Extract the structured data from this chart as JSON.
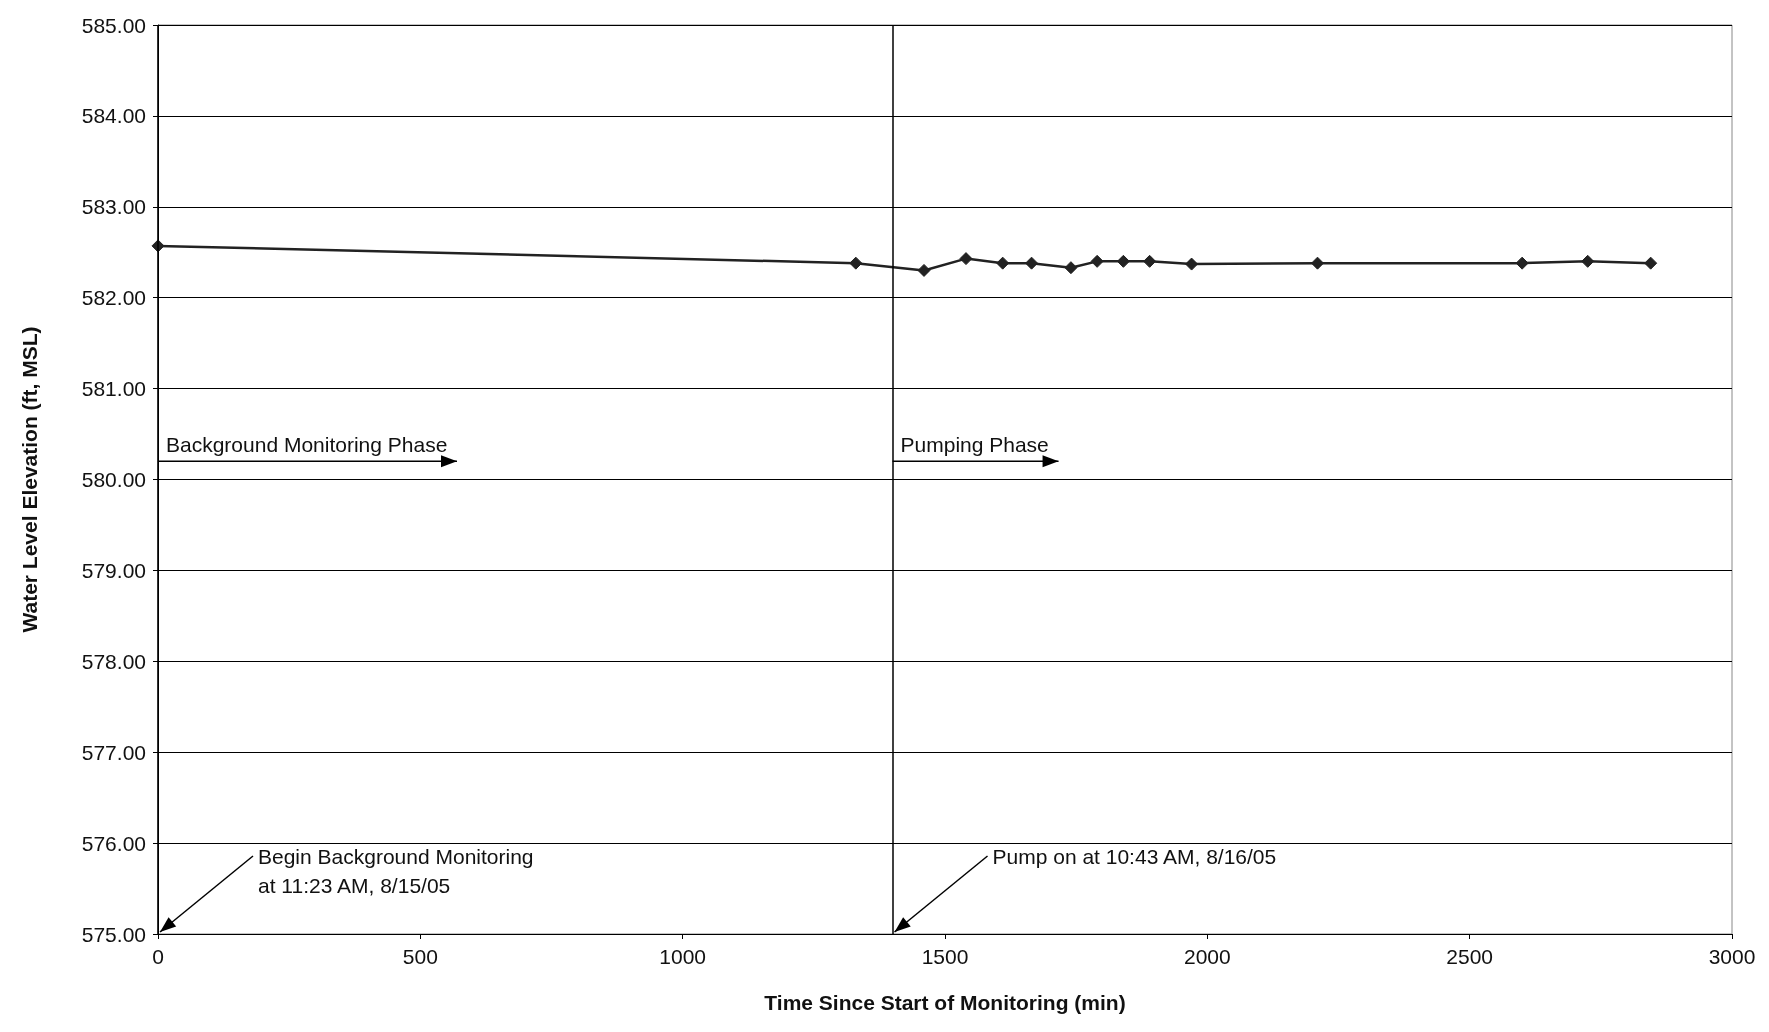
{
  "chart_data": {
    "type": "line",
    "xlabel": "Time Since Start of Monitoring (min)",
    "ylabel": "Water Level Elevation (ft, MSL)",
    "x": [
      0,
      1330,
      1460,
      1540,
      1610,
      1665,
      1740,
      1790,
      1840,
      1890,
      1970,
      2210,
      2600,
      2725,
      2845
    ],
    "series": [
      {
        "color": "#222222",
        "values": [
          582.57,
          582.38,
          582.3,
          582.43,
          582.38,
          582.38,
          582.33,
          582.4,
          582.4,
          582.4,
          582.37,
          582.38,
          582.38,
          582.4,
          582.38
        ]
      }
    ],
    "xlim": [
      0,
      3000
    ],
    "xticks": [
      0,
      500,
      1000,
      1500,
      2000,
      2500,
      3000
    ],
    "ylim": [
      575,
      585
    ],
    "yticks": [
      {
        "value": 575,
        "label": "575.00"
      },
      {
        "value": 576,
        "label": "576.00"
      },
      {
        "value": 577,
        "label": "577.00"
      },
      {
        "value": 578,
        "label": "578.00"
      },
      {
        "value": 579,
        "label": "579.00"
      },
      {
        "value": 580,
        "label": "580.00"
      },
      {
        "value": 581,
        "label": "581.00"
      },
      {
        "value": 582,
        "label": "582.00"
      },
      {
        "value": 583,
        "label": "583.00"
      },
      {
        "value": 584,
        "label": "584.00"
      },
      {
        "value": 585,
        "label": "585.00"
      }
    ],
    "grid": "y",
    "marker": "diamond",
    "line_style": "solid",
    "ref_lines": [
      {
        "axis": "x",
        "value": 0,
        "color": "#000000"
      },
      {
        "axis": "x",
        "value": 1400,
        "color": "#000000"
      }
    ],
    "annotations": [
      "Background Monitoring Phase",
      "Pumping Phase",
      {
        "text": "Begin Background Monitoring\nat 11:23 AM, 8/15/05",
        "x": 0,
        "y": 575
      },
      {
        "text": "Pump on at 10:43 AM, 8/16/05",
        "x": 1400,
        "y": 575
      }
    ]
  }
}
